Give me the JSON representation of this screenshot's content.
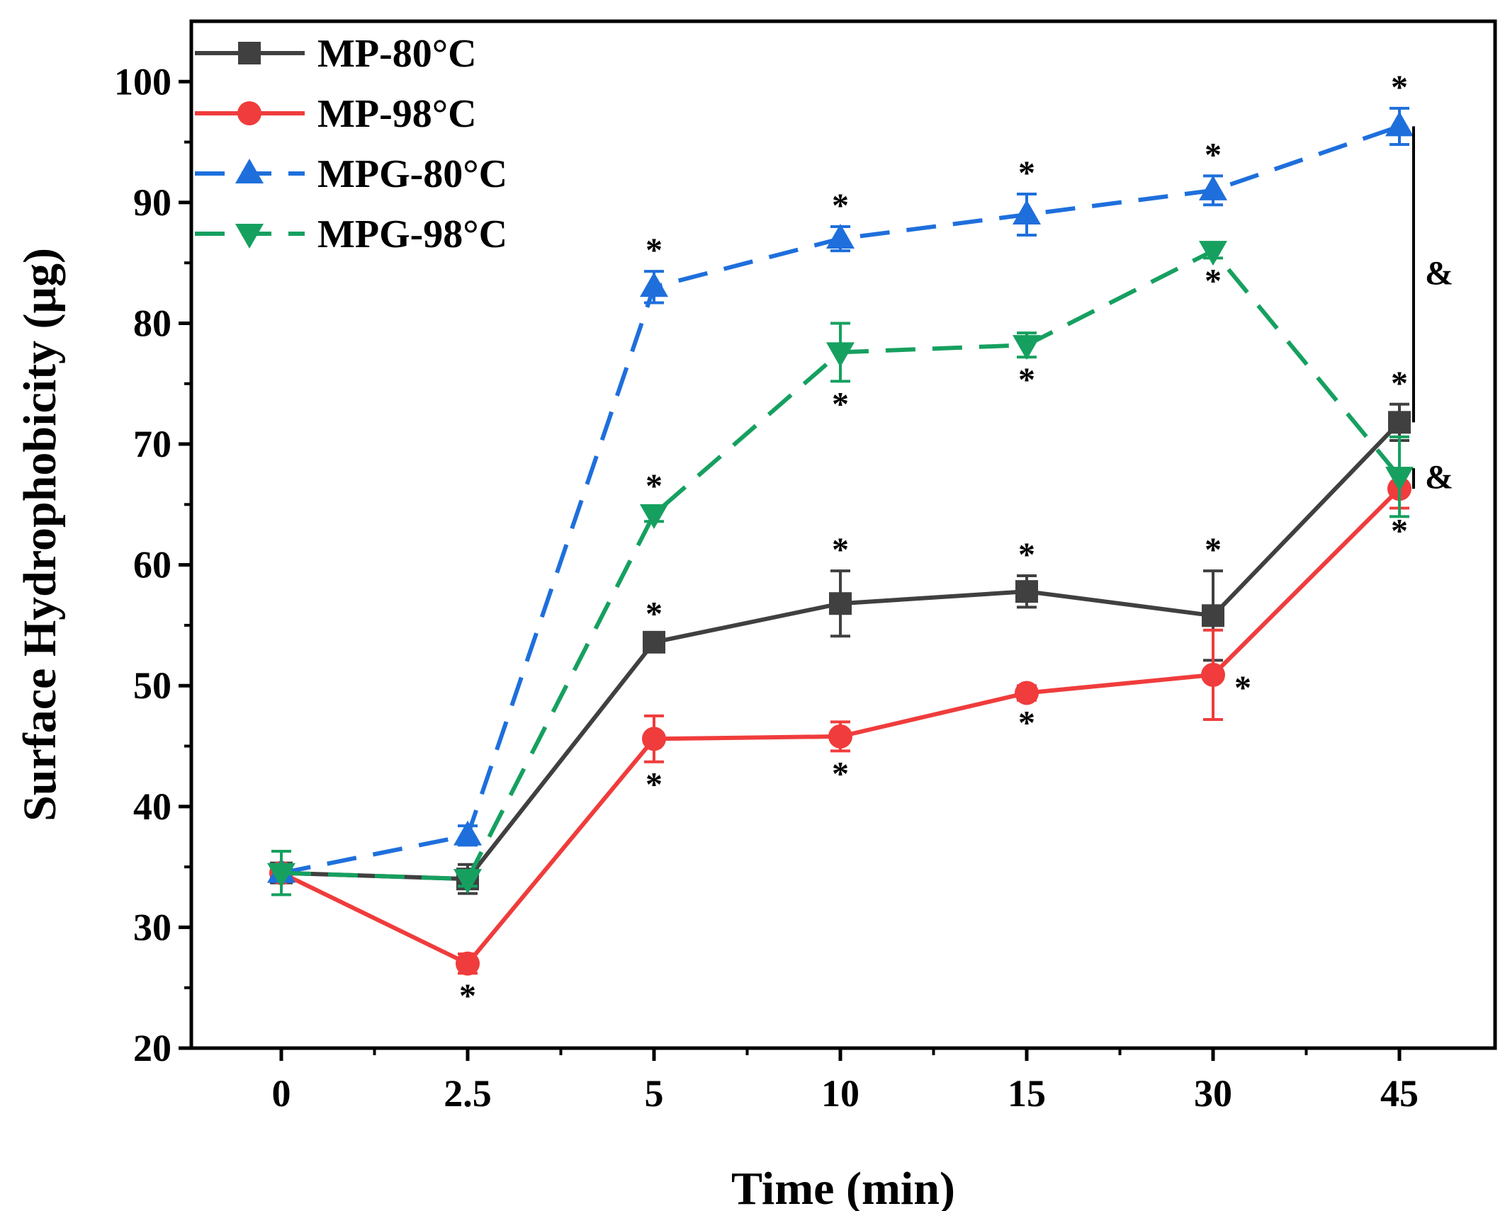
{
  "chart_data": {
    "type": "line",
    "title": "",
    "xlabel": "Time (min)",
    "ylabel": "Surface Hydrophobicity (μg)",
    "categories": [
      "0",
      "2.5",
      "5",
      "10",
      "15",
      "30",
      "45"
    ],
    "ylim": [
      20,
      105
    ],
    "yticks": [
      20,
      30,
      40,
      50,
      60,
      70,
      80,
      90,
      100
    ],
    "legend_position": "top-left",
    "series": [
      {
        "name": "MP-80°C",
        "color": "#404040",
        "marker": "square",
        "dashed": false,
        "values": [
          34.5,
          34.0,
          53.6,
          56.8,
          57.8,
          55.8,
          71.8
        ],
        "errors": [
          0.5,
          1.2,
          0.6,
          2.7,
          1.3,
          3.7,
          1.5
        ],
        "annotations": [
          {
            "i": 2,
            "text": "*",
            "pos": "above"
          },
          {
            "i": 3,
            "text": "*",
            "pos": "above"
          },
          {
            "i": 4,
            "text": "*",
            "pos": "above"
          },
          {
            "i": 5,
            "text": "*",
            "pos": "above"
          },
          {
            "i": 6,
            "text": "*",
            "pos": "above"
          }
        ]
      },
      {
        "name": "MP-98°C",
        "color": "#f03c3c",
        "marker": "circle",
        "dashed": false,
        "values": [
          34.5,
          27.0,
          45.6,
          45.8,
          49.4,
          50.9,
          66.3
        ],
        "errors": [
          0.5,
          0.8,
          1.9,
          1.2,
          0.6,
          3.7,
          1.6
        ],
        "annotations": [
          {
            "i": 1,
            "text": "*",
            "pos": "below"
          },
          {
            "i": 2,
            "text": "*",
            "pos": "below"
          },
          {
            "i": 3,
            "text": "*",
            "pos": "below"
          },
          {
            "i": 4,
            "text": "*",
            "pos": "below"
          },
          {
            "i": 5,
            "text": "*",
            "pos": "right"
          },
          {
            "i": 6,
            "text": "*",
            "pos": "below"
          }
        ]
      },
      {
        "name": "MPG-80°C",
        "color": "#1e6fdc",
        "marker": "triangle-up",
        "dashed": true,
        "values": [
          34.5,
          37.6,
          83.0,
          87.0,
          89.0,
          91.0,
          96.3
        ],
        "errors": [
          0.5,
          0.8,
          1.3,
          1.0,
          1.7,
          1.2,
          1.5
        ],
        "annotations": [
          {
            "i": 2,
            "text": "*",
            "pos": "above"
          },
          {
            "i": 3,
            "text": "*",
            "pos": "above"
          },
          {
            "i": 4,
            "text": "*",
            "pos": "above"
          },
          {
            "i": 5,
            "text": "*",
            "pos": "above"
          },
          {
            "i": 6,
            "text": "*",
            "pos": "above"
          }
        ]
      },
      {
        "name": "MPG-98°C",
        "color": "#16a060",
        "marker": "triangle-down",
        "dashed": true,
        "values": [
          34.5,
          34.0,
          64.2,
          77.6,
          78.2,
          86.0,
          67.3
        ],
        "errors": [
          1.8,
          0.6,
          0.6,
          2.4,
          1.0,
          0.6,
          3.3
        ],
        "annotations": [
          {
            "i": 2,
            "text": "*",
            "pos": "above"
          },
          {
            "i": 3,
            "text": "*",
            "pos": "below"
          },
          {
            "i": 4,
            "text": "*",
            "pos": "below"
          },
          {
            "i": 5,
            "text": "*",
            "pos": "below"
          }
        ]
      }
    ],
    "brackets": [
      {
        "from_value": 71.8,
        "to_value": 96.3,
        "label": "&"
      },
      {
        "from_value": 66.3,
        "to_value": 68.0,
        "label": "&"
      }
    ]
  }
}
